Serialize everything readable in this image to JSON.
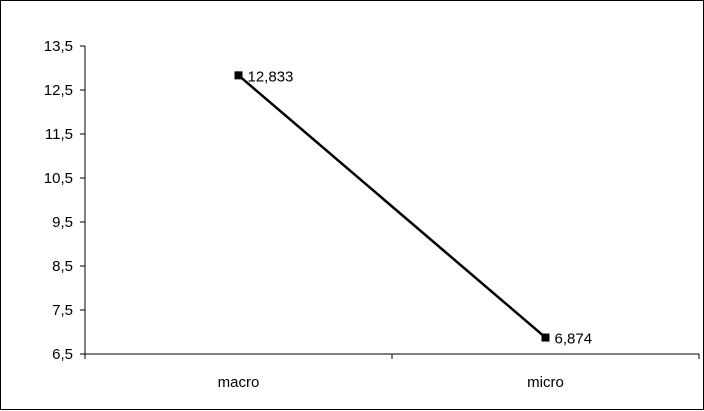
{
  "chart_data": {
    "type": "line",
    "categories": [
      "macro",
      "micro"
    ],
    "series": [
      {
        "values": [
          12.833,
          6.874
        ]
      }
    ],
    "data_labels": [
      "12,833",
      "6,874"
    ],
    "y_ticks": [
      6.5,
      7.5,
      8.5,
      9.5,
      10.5,
      11.5,
      12.5,
      13.5
    ],
    "y_tick_labels": [
      "6,5",
      "7,5",
      "8,5",
      "9,5",
      "10,5",
      "11,5",
      "12,5",
      "13,5"
    ],
    "ylim": [
      6.5,
      13.5
    ],
    "grid": false,
    "legend": "none",
    "title": "",
    "xlabel": "",
    "ylabel": "",
    "line_color": "#000000",
    "marker": "square"
  }
}
